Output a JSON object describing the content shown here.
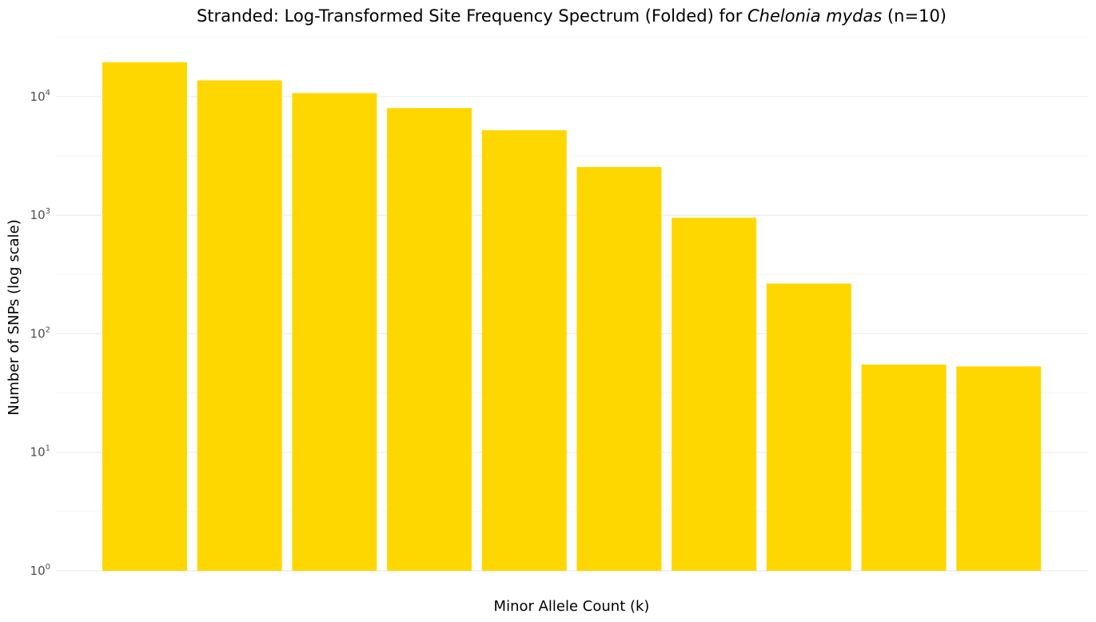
{
  "chart_data": {
    "type": "bar",
    "title": {
      "prefix": "Stranded: Log-Transformed Site Frequency Spectrum (Folded) for ",
      "species": "Chelonia mydas",
      "suffix": " (n=10)"
    },
    "xlabel": "Minor Allele Count (k)",
    "ylabel": "Number of SNPs (log scale)",
    "y_scale": "log10",
    "ylim": [
      1,
      30000
    ],
    "y_ticks": [
      {
        "base": "10",
        "exp": "0",
        "value": 1
      },
      {
        "base": "10",
        "exp": "1",
        "value": 10
      },
      {
        "base": "10",
        "exp": "2",
        "value": 100
      },
      {
        "base": "10",
        "exp": "3",
        "value": 1000
      },
      {
        "base": "10",
        "exp": "4",
        "value": 10000
      }
    ],
    "x_tick_labels_shown": false,
    "values": [
      19500,
      13700,
      10700,
      8000,
      5200,
      2550,
      950,
      265,
      55,
      53
    ],
    "bar_color": "#FFD700",
    "grid": true,
    "legend": "none"
  }
}
